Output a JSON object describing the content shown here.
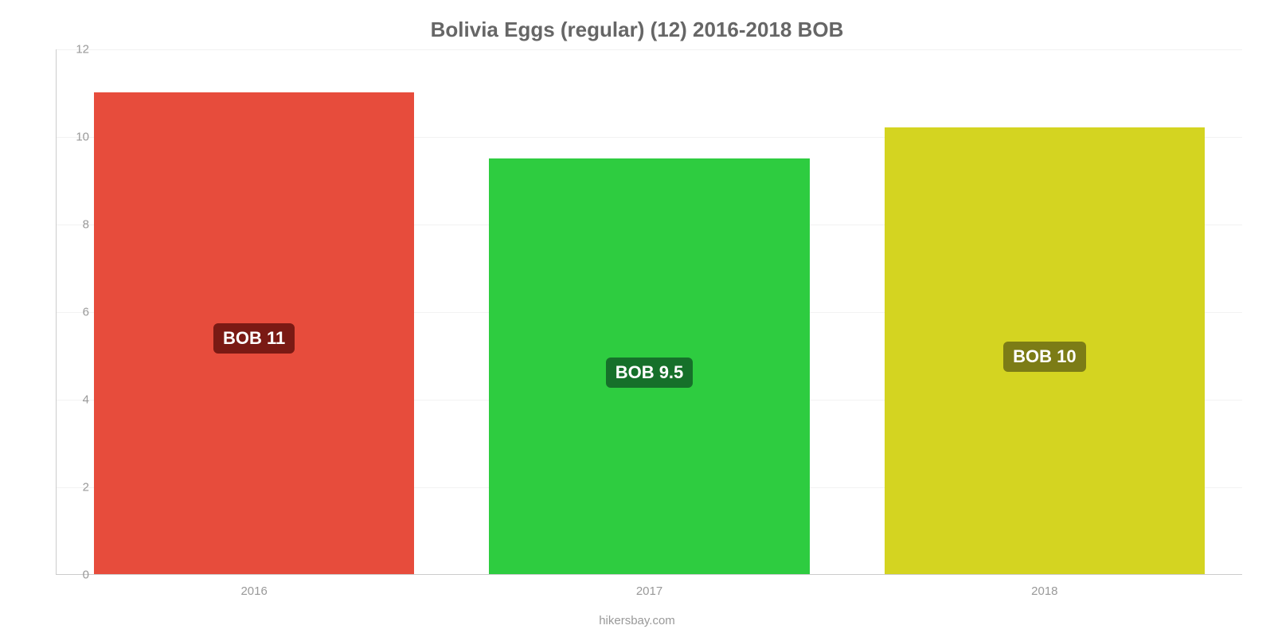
{
  "chart": {
    "type": "bar",
    "title": "Bolivia Eggs (regular) (12) 2016-2018 BOB",
    "title_fontsize": 26,
    "title_color": "#666666",
    "background_color": "#ffffff",
    "grid_color": "#f2f2f2",
    "axis_color": "#cccccc",
    "tick_color": "#999999",
    "tick_fontsize": 15,
    "ylim": [
      0,
      12
    ],
    "ytick_step": 2,
    "yticks": [
      0,
      2,
      4,
      6,
      8,
      10,
      12
    ],
    "categories": [
      "2016",
      "2017",
      "2018"
    ],
    "values": [
      11,
      9.5,
      10.2
    ],
    "bar_labels": [
      "BOB 11",
      "BOB 9.5",
      "BOB 10"
    ],
    "bar_colors": [
      "#e74c3c",
      "#2ecc40",
      "#d4d421"
    ],
    "bar_label_bg": [
      "#7a1a14",
      "#16702a",
      "#7c7c16"
    ],
    "bar_label_fontsize": 22,
    "bar_label_top_pct": 48,
    "bar_width_pct": 27,
    "attribution": "hikersbay.com",
    "attribution_fontsize": 15,
    "attribution_color": "#999999"
  }
}
